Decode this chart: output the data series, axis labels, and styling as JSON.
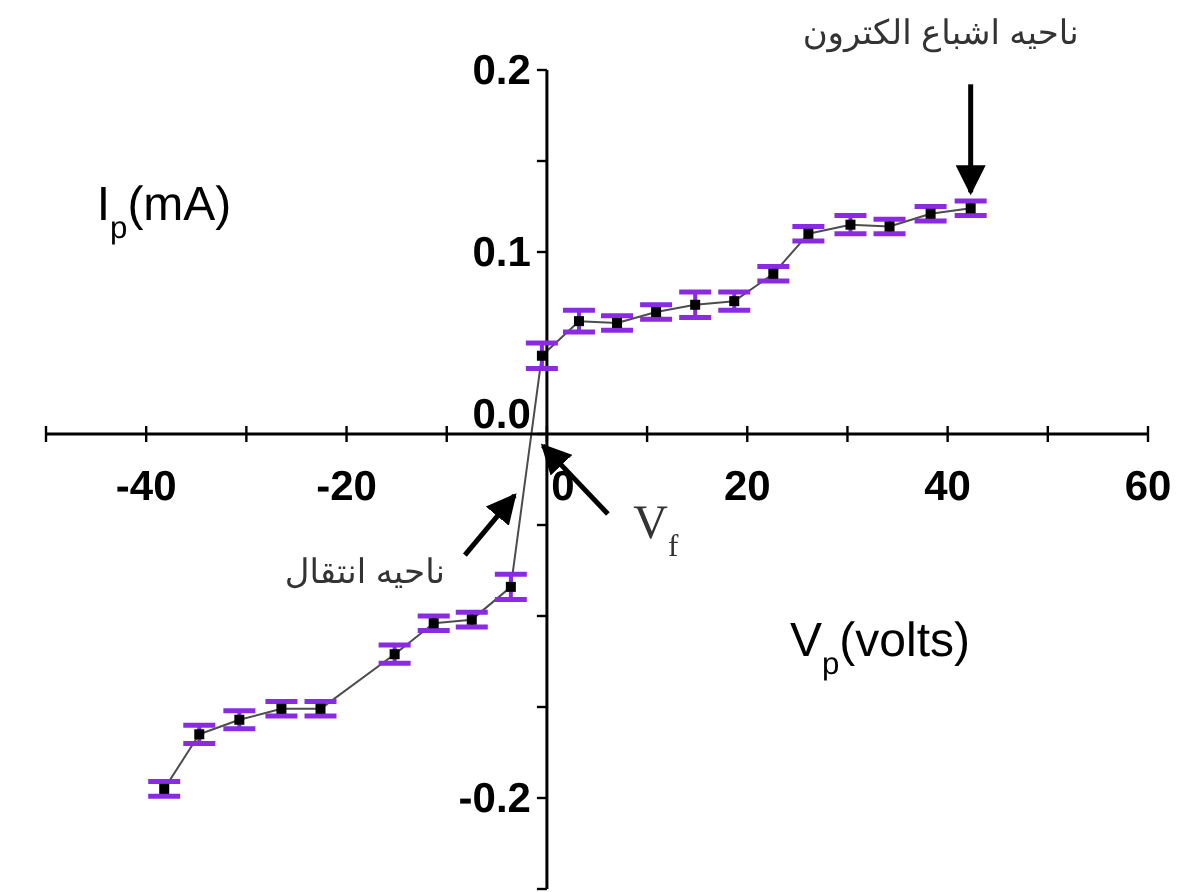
{
  "chart_data": {
    "type": "line",
    "xlabel": "V$_{p}$(volts)",
    "ylabel": "I$_{p}$(mA)",
    "xlim": [
      -50,
      60
    ],
    "ylim": [
      -0.25,
      0.2
    ],
    "xticks": [
      {
        "value": -50,
        "label": null
      },
      -40,
      {
        "value": -30,
        "label": null
      },
      -20,
      {
        "value": -10,
        "label": null
      },
      0,
      {
        "value": 10,
        "label": null
      },
      20,
      {
        "value": 30,
        "label": null
      },
      40,
      {
        "value": 50,
        "label": null
      },
      60
    ],
    "yticks": [
      0.2,
      {
        "value": 0.15,
        "label": null
      },
      0.1,
      {
        "value": 0.05,
        "label": null
      },
      {
        "value": 0,
        "label": "0.0"
      },
      {
        "value": -0.05,
        "label": null
      },
      {
        "value": -0.1,
        "label": null
      },
      {
        "value": -0.15,
        "label": null
      },
      -0.2,
      {
        "value": -0.25,
        "label": null
      }
    ],
    "grid": false,
    "marker": "square",
    "line_style": "solid",
    "series": [
      {
        "color": "#000000",
        "x": [
          -38.2,
          -34.7,
          -30.7,
          -26.5,
          -22.6,
          -15.2,
          -11.3,
          -7.5,
          -3.6,
          -0.5,
          3.2,
          7.0,
          10.9,
          14.8,
          18.7,
          22.6,
          26.1,
          30.3,
          34.2,
          38.3,
          42.3
        ],
        "values": [
          -0.195,
          -0.165,
          -0.157,
          -0.151,
          -0.151,
          -0.121,
          -0.104,
          -0.102,
          -0.084,
          0.043,
          0.062,
          0.061,
          0.067,
          0.071,
          0.073,
          0.088,
          0.11,
          0.115,
          0.114,
          0.121,
          0.124
        ],
        "errors": [
          0.004,
          0.005,
          0.005,
          0.004,
          0.004,
          0.005,
          0.004,
          0.004,
          0.007,
          0.007,
          0.006,
          0.004,
          0.004,
          0.007,
          0.005,
          0.004,
          0.004,
          0.005,
          0.004,
          0.004,
          0.004
        ]
      }
    ],
    "annotations": [
      {
        "text": "ناحیه اشباع الکترون",
        "x": 42.3,
        "y": 0.124
      },
      {
        "text": "ناحیه انتقال",
        "x": -2.2,
        "y": -0.027
      },
      {
        "text": "V$_{f}$",
        "x": -1.5,
        "y": 0
      }
    ]
  }
}
